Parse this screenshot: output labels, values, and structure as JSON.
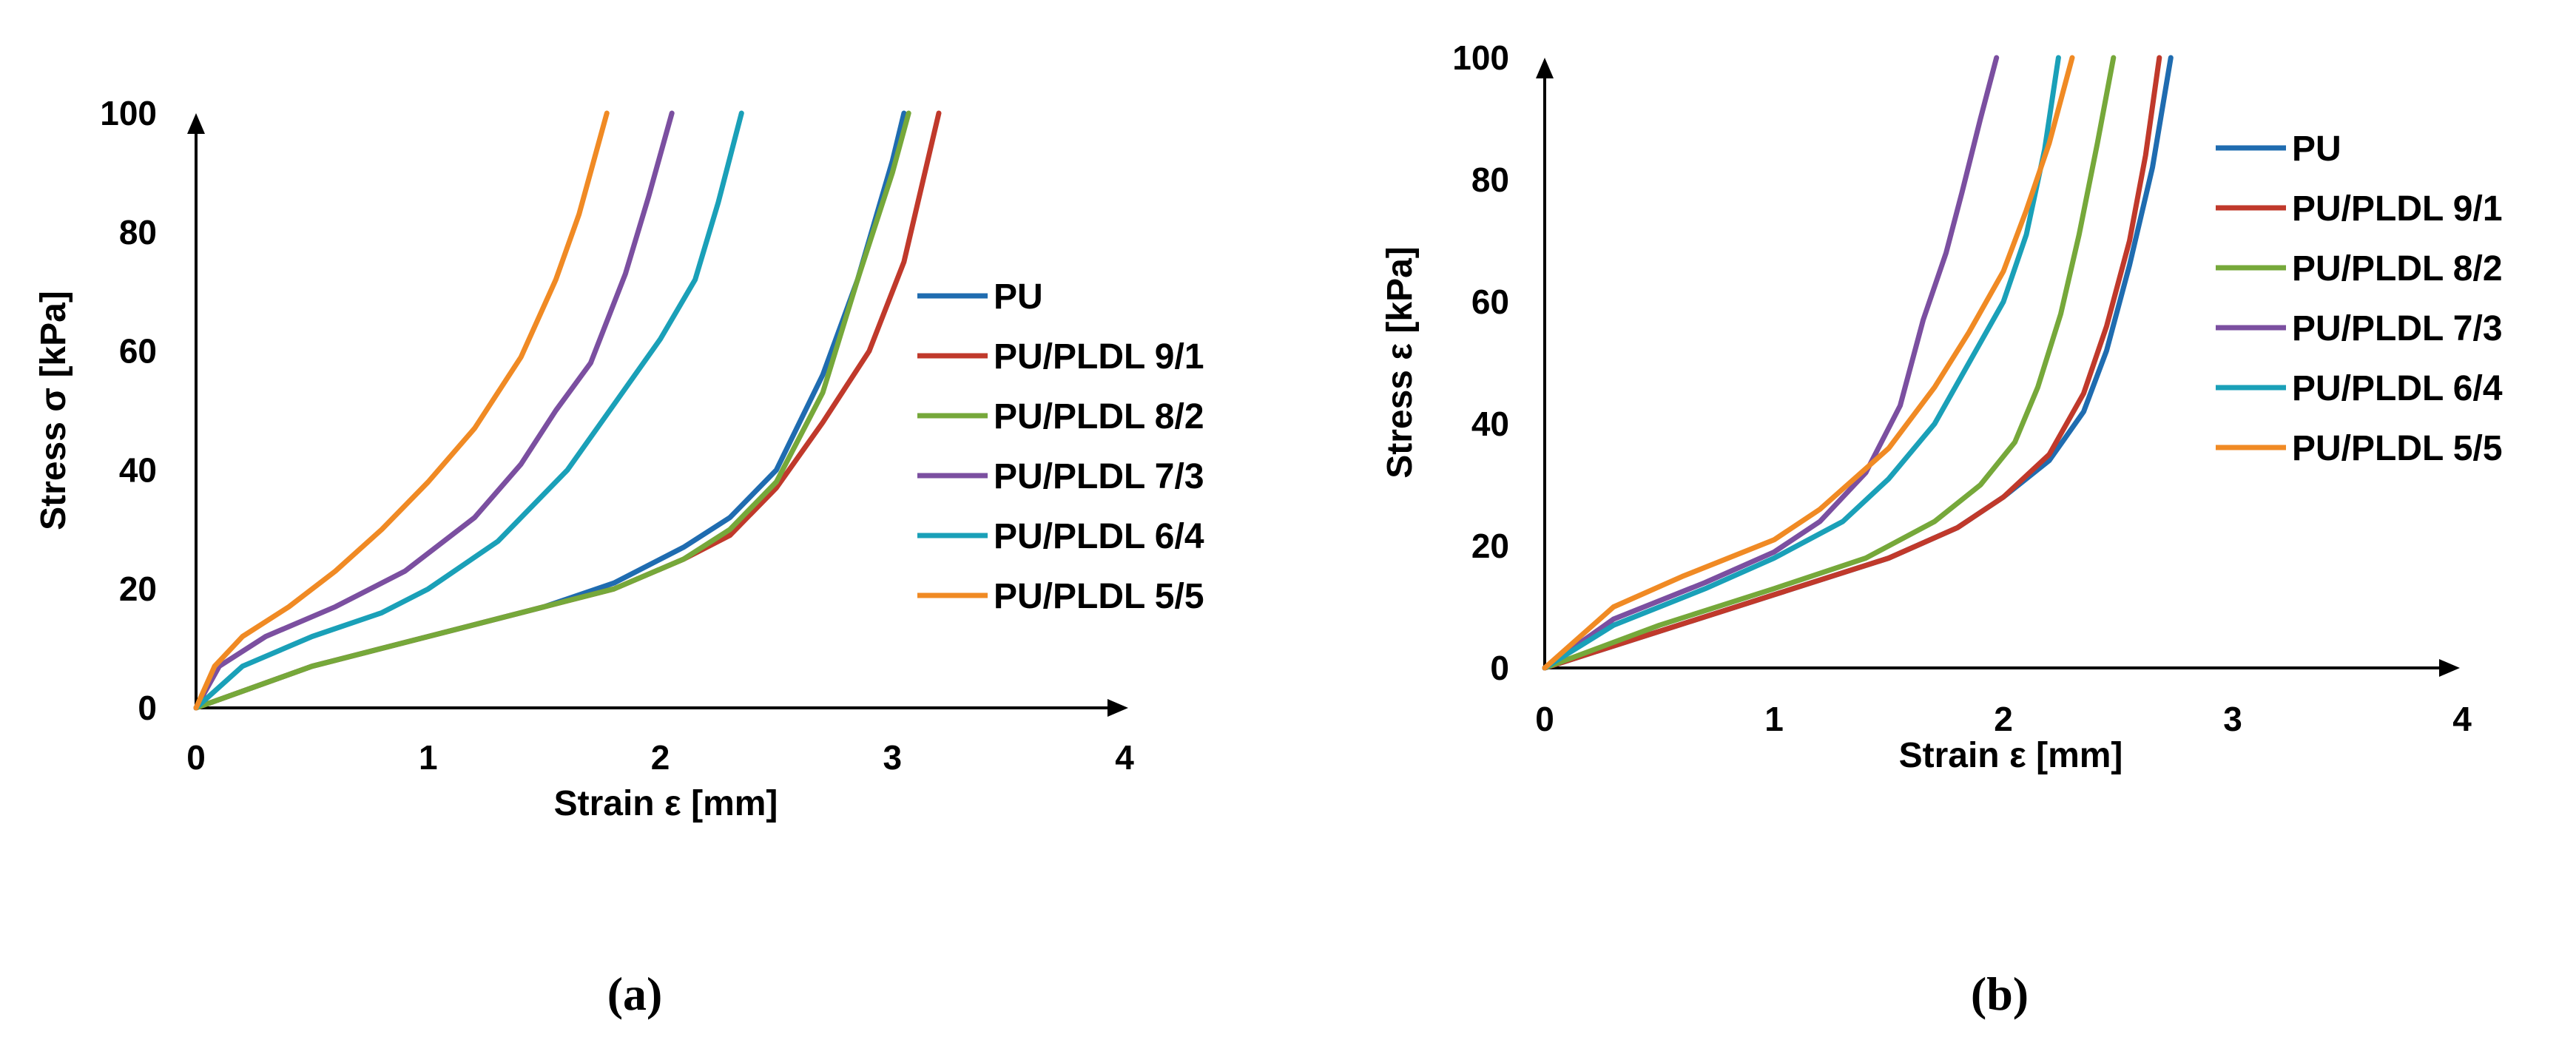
{
  "chart_data": [
    {
      "type": "line",
      "panel_label": "(a)",
      "xlabel": "Strain ε [mm]",
      "ylabel": "Stress σ [kPa]",
      "xlim": [
        0,
        4
      ],
      "ylim": [
        0,
        100
      ],
      "xticks": [
        0,
        1,
        2,
        3,
        4
      ],
      "yticks": [
        0,
        20,
        40,
        60,
        80,
        100
      ],
      "legend_position": "right",
      "series": [
        {
          "name": "PU",
          "color": "#1f6cb0",
          "x": [
            0,
            0.5,
            1.0,
            1.5,
            1.8,
            2.1,
            2.3,
            2.5,
            2.7,
            2.85,
            3.0,
            3.05
          ],
          "y": [
            0,
            7,
            12,
            17,
            21,
            27,
            32,
            40,
            56,
            72,
            92,
            100
          ]
        },
        {
          "name": "PU/PLDL 9/1",
          "color": "#c0392b",
          "x": [
            0,
            0.5,
            1.0,
            1.5,
            1.8,
            2.1,
            2.3,
            2.5,
            2.7,
            2.9,
            3.05,
            3.2
          ],
          "y": [
            0,
            7,
            12,
            17,
            20,
            25,
            29,
            37,
            48,
            60,
            75,
            100
          ]
        },
        {
          "name": "PU/PLDL 8/2",
          "color": "#76a83a",
          "x": [
            0,
            0.5,
            1.0,
            1.5,
            1.8,
            2.1,
            2.3,
            2.5,
            2.7,
            2.85,
            3.0,
            3.07
          ],
          "y": [
            0,
            7,
            12,
            17,
            20,
            25,
            30,
            38,
            53,
            72,
            90,
            100
          ]
        },
        {
          "name": "PU/PLDL 7/3",
          "color": "#7b4fa0",
          "x": [
            0,
            0.1,
            0.3,
            0.6,
            0.9,
            1.2,
            1.4,
            1.55,
            1.7,
            1.85,
            1.95,
            2.05
          ],
          "y": [
            0,
            7,
            12,
            17,
            23,
            32,
            41,
            50,
            58,
            73,
            86,
            100
          ]
        },
        {
          "name": "PU/PLDL 6/4",
          "color": "#1aa0b8",
          "x": [
            0,
            0.2,
            0.5,
            0.8,
            1.0,
            1.3,
            1.6,
            1.8,
            2.0,
            2.15,
            2.25,
            2.35
          ],
          "y": [
            0,
            7,
            12,
            16,
            20,
            28,
            40,
            51,
            62,
            72,
            85,
            100
          ]
        },
        {
          "name": "PU/PLDL 5/5",
          "color": "#f08a24",
          "x": [
            0,
            0.08,
            0.2,
            0.4,
            0.6,
            0.8,
            1.0,
            1.2,
            1.4,
            1.55,
            1.65,
            1.77
          ],
          "y": [
            0,
            7,
            12,
            17,
            23,
            30,
            38,
            47,
            59,
            72,
            83,
            100
          ]
        }
      ]
    },
    {
      "type": "line",
      "panel_label": "(b)",
      "xlabel": "Strain ε [mm]",
      "ylabel": "Stress ε [kPa]",
      "xlim": [
        0,
        4
      ],
      "ylim": [
        0,
        100
      ],
      "xticks": [
        0,
        1,
        2,
        3,
        4
      ],
      "yticks": [
        0,
        20,
        40,
        60,
        80,
        100
      ],
      "legend_position": "right",
      "series": [
        {
          "name": "PU",
          "color": "#1f6cb0",
          "x": [
            0,
            0.5,
            1.0,
            1.5,
            1.8,
            2.0,
            2.2,
            2.35,
            2.45,
            2.55,
            2.65,
            2.73
          ],
          "y": [
            0,
            6,
            12,
            18,
            23,
            28,
            34,
            42,
            52,
            66,
            82,
            100
          ]
        },
        {
          "name": "PU/PLDL 9/1",
          "color": "#c0392b",
          "x": [
            0,
            0.5,
            1.0,
            1.5,
            1.8,
            2.0,
            2.2,
            2.35,
            2.45,
            2.55,
            2.62,
            2.68
          ],
          "y": [
            0,
            6,
            12,
            18,
            23,
            28,
            35,
            45,
            56,
            70,
            84,
            100
          ]
        },
        {
          "name": "PU/PLDL 8/2",
          "color": "#76a83a",
          "x": [
            0,
            0.5,
            1.0,
            1.4,
            1.7,
            1.9,
            2.05,
            2.15,
            2.25,
            2.33,
            2.41,
            2.48
          ],
          "y": [
            0,
            7,
            13,
            18,
            24,
            30,
            37,
            46,
            58,
            71,
            86,
            100
          ]
        },
        {
          "name": "PU/PLDL 7/3",
          "color": "#7b4fa0",
          "x": [
            0,
            0.3,
            0.7,
            1.0,
            1.2,
            1.4,
            1.55,
            1.65,
            1.75,
            1.82,
            1.9,
            1.97
          ],
          "y": [
            0,
            8,
            14,
            19,
            24,
            32,
            43,
            57,
            68,
            78,
            90,
            100
          ]
        },
        {
          "name": "PU/PLDL 6/4",
          "color": "#1aa0b8",
          "x": [
            0,
            0.3,
            0.7,
            1.0,
            1.3,
            1.5,
            1.7,
            1.85,
            2.0,
            2.1,
            2.18,
            2.24
          ],
          "y": [
            0,
            7,
            13,
            18,
            24,
            31,
            40,
            50,
            60,
            71,
            85,
            100
          ]
        },
        {
          "name": "PU/PLDL 5/5",
          "color": "#f08a24",
          "x": [
            0,
            0.3,
            0.6,
            1.0,
            1.2,
            1.5,
            1.7,
            1.85,
            2.0,
            2.1,
            2.2,
            2.3
          ],
          "y": [
            0,
            10,
            15,
            21,
            26,
            36,
            46,
            55,
            65,
            75,
            86,
            100
          ]
        }
      ]
    }
  ]
}
